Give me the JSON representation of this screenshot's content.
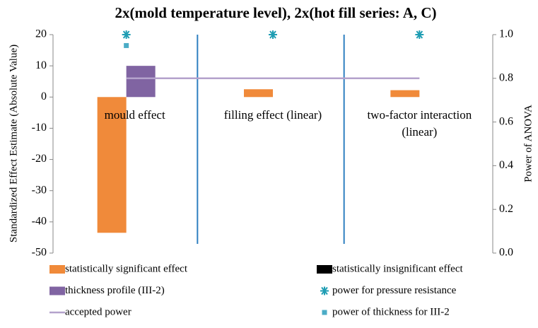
{
  "chart_data": {
    "type": "bar",
    "title": "2x(mold temperature level), 2x(hot fill series: A, C)",
    "y_label": "Standardized Effect Estimate (Absolute Value)",
    "y2_label": "Power of ANOVA",
    "categories": [
      "mould effect",
      "filling effect (linear)",
      "two-factor interaction (linear)"
    ],
    "ylim": [
      -50,
      20
    ],
    "yticks": [
      -50,
      -40,
      -30,
      -20,
      -10,
      0,
      10,
      20
    ],
    "y2lim": [
      0,
      1
    ],
    "y2ticks": [
      {
        "value": 0,
        "label": "0.0"
      },
      {
        "value": 0.2,
        "label": "0.2"
      },
      {
        "value": 0.4,
        "label": "0.4"
      },
      {
        "value": 0.6,
        "label": "0.6"
      },
      {
        "value": 0.8,
        "label": "0.8"
      },
      {
        "value": 1,
        "label": "1.0"
      }
    ],
    "series": [
      {
        "name": "statistically significant effect",
        "type": "bar",
        "color": "#f08a3a",
        "values": [
          -43.5,
          2.5,
          2.2
        ]
      },
      {
        "name": "statistically insignificant effect",
        "type": "bar",
        "color": "#000000",
        "values": [
          null,
          null,
          null
        ]
      },
      {
        "name": "thickness profile (III-2)",
        "type": "bar",
        "color": "#8064a2",
        "values": [
          10,
          null,
          null
        ]
      },
      {
        "name": "power for pressure resistance",
        "type": "scatter",
        "marker": "asterisk",
        "axis": "y2",
        "color": "#1f9db3",
        "values": [
          1,
          1,
          1
        ]
      },
      {
        "name": "accepted power",
        "type": "line",
        "axis": "y2",
        "color": "#b4a2cc",
        "values": [
          0.8,
          0.8,
          0.8
        ]
      },
      {
        "name": "power of thickness for III-2",
        "type": "scatter",
        "marker": "square",
        "axis": "y2",
        "color": "#4bacc6",
        "values": [
          0.95,
          null,
          null
        ]
      }
    ]
  }
}
